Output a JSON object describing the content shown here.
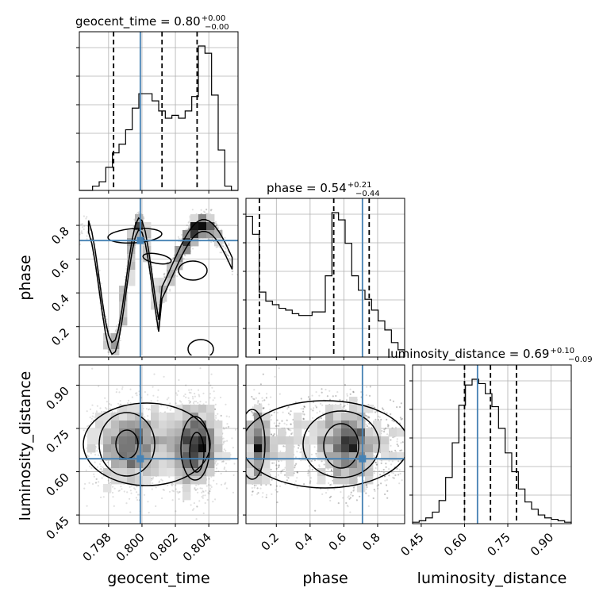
{
  "chart_data": {
    "type": "corner",
    "parameters": [
      "geocent_time",
      "phase",
      "luminosity_distance"
    ],
    "truth_color": "#4682b4",
    "titles": {
      "geocent_time": {
        "label": "geocent_time = 0.80",
        "sup": "+0.00",
        "sub": "−0.00",
        "median": 0.8,
        "plus": 0.0,
        "minus": 0.0
      },
      "phase": {
        "label": "phase = 0.54",
        "sup": "+0.21",
        "sub": "−0.44",
        "median": 0.54,
        "plus": 0.21,
        "minus": 0.44
      },
      "luminosity_distance": {
        "label": "luminosity_distance = 0.69",
        "sup": "+0.10",
        "sub": "−0.09",
        "median": 0.69,
        "plus": 0.1,
        "minus": 0.09
      }
    },
    "truths": {
      "geocent_time": 0.7999,
      "phase": 0.71,
      "luminosity_distance": 0.645
    },
    "ranges": {
      "geocent_time": [
        0.79625,
        0.80575
      ],
      "phase": [
        0.02,
        0.96
      ],
      "luminosity_distance": [
        0.42,
        0.97
      ]
    },
    "ticks": {
      "geocent_time": [
        {
          "v": 0.798,
          "label": "0.798"
        },
        {
          "v": 0.8,
          "label": "0.800"
        },
        {
          "v": 0.802,
          "label": "0.802"
        },
        {
          "v": 0.804,
          "label": "0.804"
        }
      ],
      "phase": [
        {
          "v": 0.2,
          "label": "0.2"
        },
        {
          "v": 0.4,
          "label": "0.4"
        },
        {
          "v": 0.6,
          "label": "0.6"
        },
        {
          "v": 0.8,
          "label": "0.8"
        }
      ],
      "luminosity_distance": [
        {
          "v": 0.45,
          "label": "0.45"
        },
        {
          "v": 0.6,
          "label": "0.60"
        },
        {
          "v": 0.75,
          "label": "0.75"
        },
        {
          "v": 0.9,
          "label": "0.90"
        }
      ]
    },
    "quantiles": {
      "geocent_time": [
        0.7983,
        0.8012,
        0.8033
      ],
      "phase": [
        0.1,
        0.54,
        0.75
      ],
      "luminosity_distance": [
        0.6,
        0.69,
        0.78
      ]
    },
    "histograms": {
      "geocent_time": [
        0,
        0,
        3,
        6,
        16,
        26,
        32,
        42,
        57,
        67,
        67,
        62,
        55,
        50,
        52,
        50,
        55,
        65,
        100,
        95,
        66,
        28,
        3,
        0
      ],
      "phase": [
        78,
        68,
        36,
        31,
        29,
        27,
        26,
        24,
        23,
        23,
        25,
        25,
        45,
        80,
        76,
        63,
        45,
        37,
        32,
        26,
        20,
        15,
        8,
        4
      ],
      "luminosity_distance": [
        1,
        2,
        4,
        8,
        16,
        32,
        56,
        82,
        96,
        100,
        97,
        90,
        81,
        66,
        49,
        36,
        24,
        15,
        10,
        6,
        4,
        3,
        2,
        1
      ]
    },
    "axis_labels": {
      "geocent_time": "geocent_time",
      "phase": "phase",
      "luminosity_distance": "luminosity_distance"
    },
    "grid": true
  }
}
